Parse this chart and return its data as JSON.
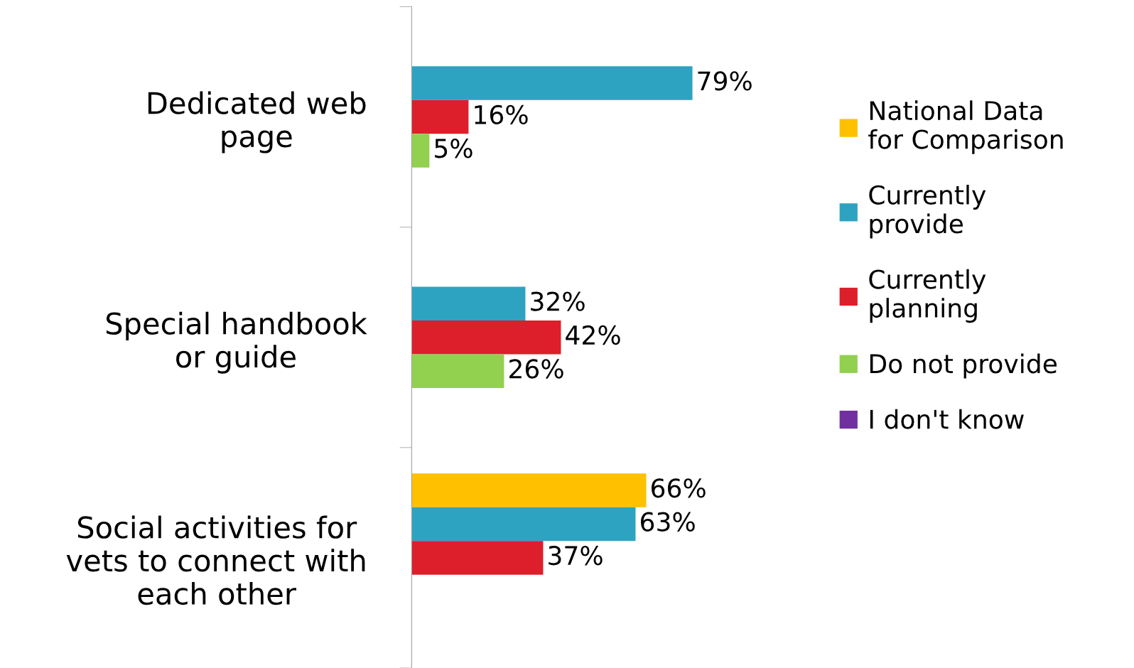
{
  "chart_data": {
    "type": "bar",
    "orientation": "horizontal",
    "categories": [
      "Dedicated web\npage",
      "Special handbook\nor guide",
      "Social activities for\nvets to connect with\neach other"
    ],
    "series": [
      {
        "name": "National Data\nfor Comparison",
        "color": "#ffc000",
        "values": [
          null,
          null,
          66
        ],
        "value_labels": [
          null,
          null,
          "66%"
        ]
      },
      {
        "name": "Currently\nprovide",
        "color": "#2ea3c1",
        "values": [
          79,
          32,
          63
        ],
        "value_labels": [
          "79%",
          "32%",
          "63%"
        ]
      },
      {
        "name": "Currently\nplanning",
        "color": "#dc1f2a",
        "values": [
          16,
          42,
          37
        ],
        "value_labels": [
          "16%",
          "42%",
          "37%"
        ]
      },
      {
        "name": "Do not provide",
        "color": "#92d050",
        "values": [
          5,
          26,
          null
        ],
        "value_labels": [
          "5%",
          "26%",
          null
        ]
      },
      {
        "name": "I don't know",
        "color": "#7030a0",
        "values": [
          null,
          null,
          null
        ]
      }
    ],
    "tick_labels": "y",
    "legend": "right",
    "grid": false
  }
}
